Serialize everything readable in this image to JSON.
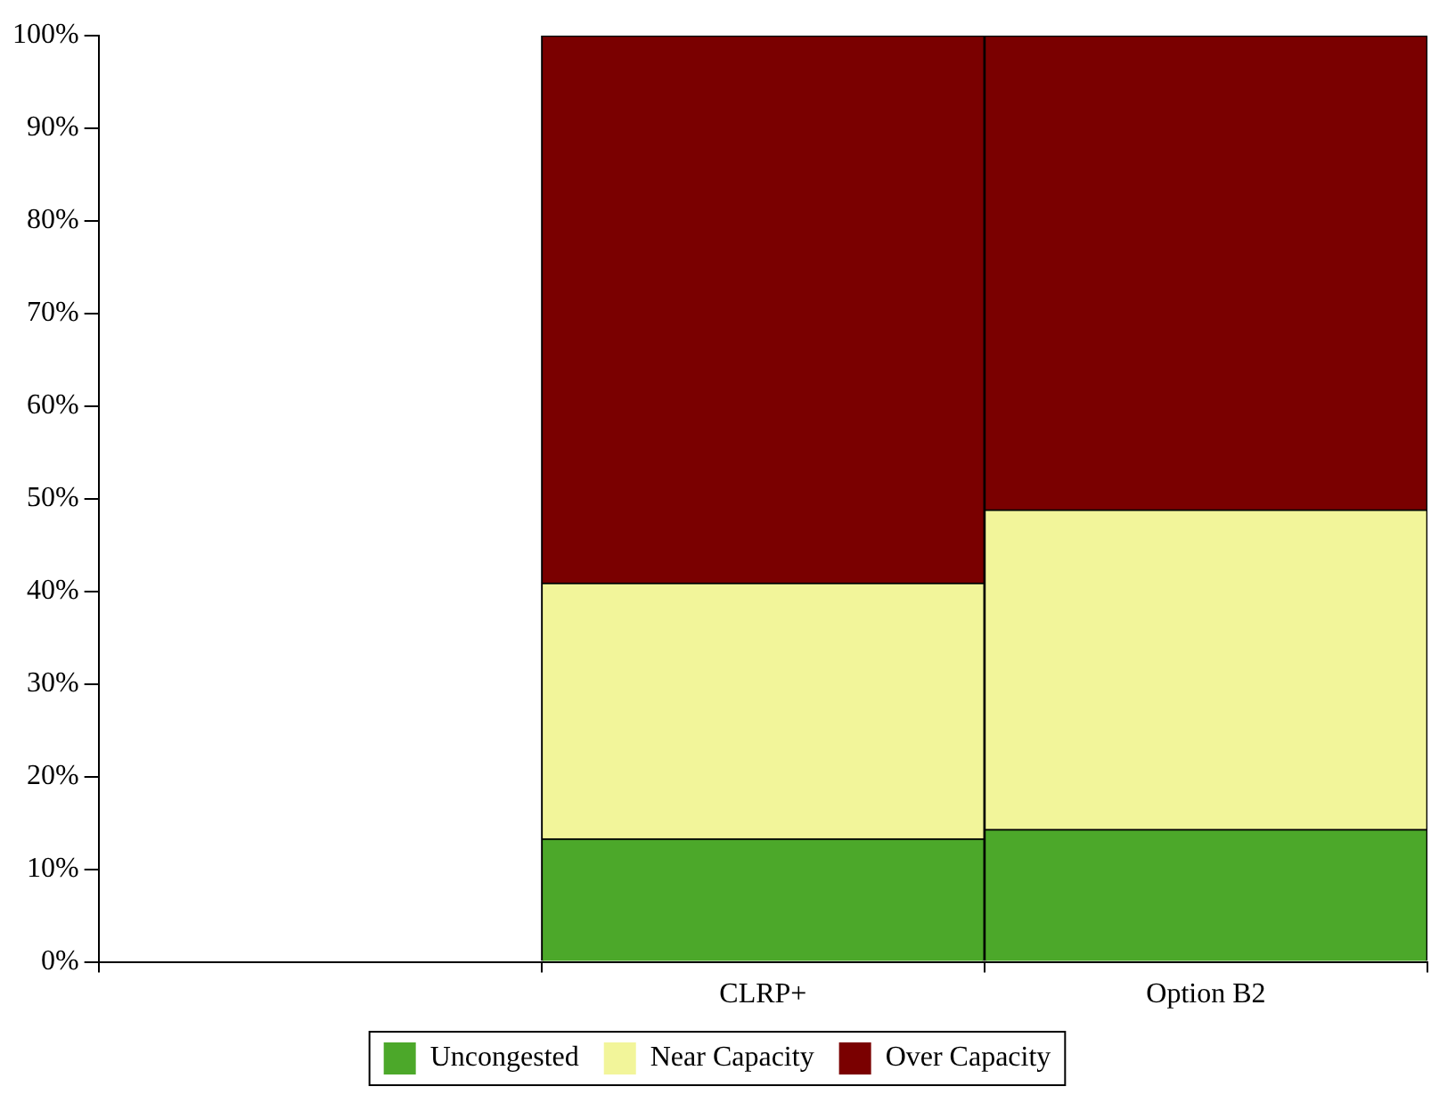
{
  "chart_data": {
    "type": "bar",
    "stacked": true,
    "categories": [
      null,
      "CLRP+",
      "Option B2"
    ],
    "series": [
      {
        "name": "Uncongested",
        "color": "#4ca82a",
        "values": [
          null,
          13.3,
          14.3
        ]
      },
      {
        "name": "Near Capacity",
        "color": "#f2f59a",
        "values": [
          null,
          27.6,
          34.5
        ]
      },
      {
        "name": "Over Capacity",
        "color": "#7a0000",
        "values": [
          null,
          59.1,
          51.2
        ]
      }
    ],
    "ylim": [
      0,
      100
    ],
    "yticks": [
      {
        "value": 0,
        "label": "0%"
      },
      {
        "value": 10,
        "label": "10%"
      },
      {
        "value": 20,
        "label": "20%"
      },
      {
        "value": 30,
        "label": "30%"
      },
      {
        "value": 40,
        "label": "40%"
      },
      {
        "value": 50,
        "label": "50%"
      },
      {
        "value": 60,
        "label": "60%"
      },
      {
        "value": 70,
        "label": "70%"
      },
      {
        "value": 80,
        "label": "80%"
      },
      {
        "value": 90,
        "label": "90%"
      },
      {
        "value": 100,
        "label": "100%"
      }
    ],
    "grid": false,
    "legend": "bottom"
  }
}
